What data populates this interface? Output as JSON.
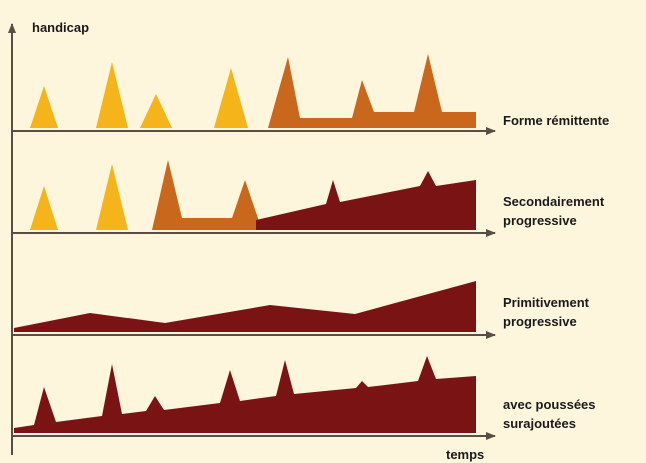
{
  "axes": {
    "y_label": "handicap",
    "x_label": "temps"
  },
  "colors": {
    "background": "#fdf5dc",
    "axis": "#5a4e44",
    "relapse_yellow": "#f4b41a",
    "relapse_orange": "#c9671c",
    "progression_dark_red": "#7a1414"
  },
  "rows": [
    {
      "id": "forme-remittente",
      "label_lines": [
        "Forme rémittente"
      ]
    },
    {
      "id": "secondairement-progressive",
      "label_lines": [
        "Secondairement",
        "progressive"
      ]
    },
    {
      "id": "primitivement-progressive",
      "label_lines": [
        "Primitivement",
        "progressive"
      ]
    },
    {
      "id": "avec-poussees",
      "label_lines": [
        "avec poussées",
        "surajoutées"
      ]
    }
  ]
}
